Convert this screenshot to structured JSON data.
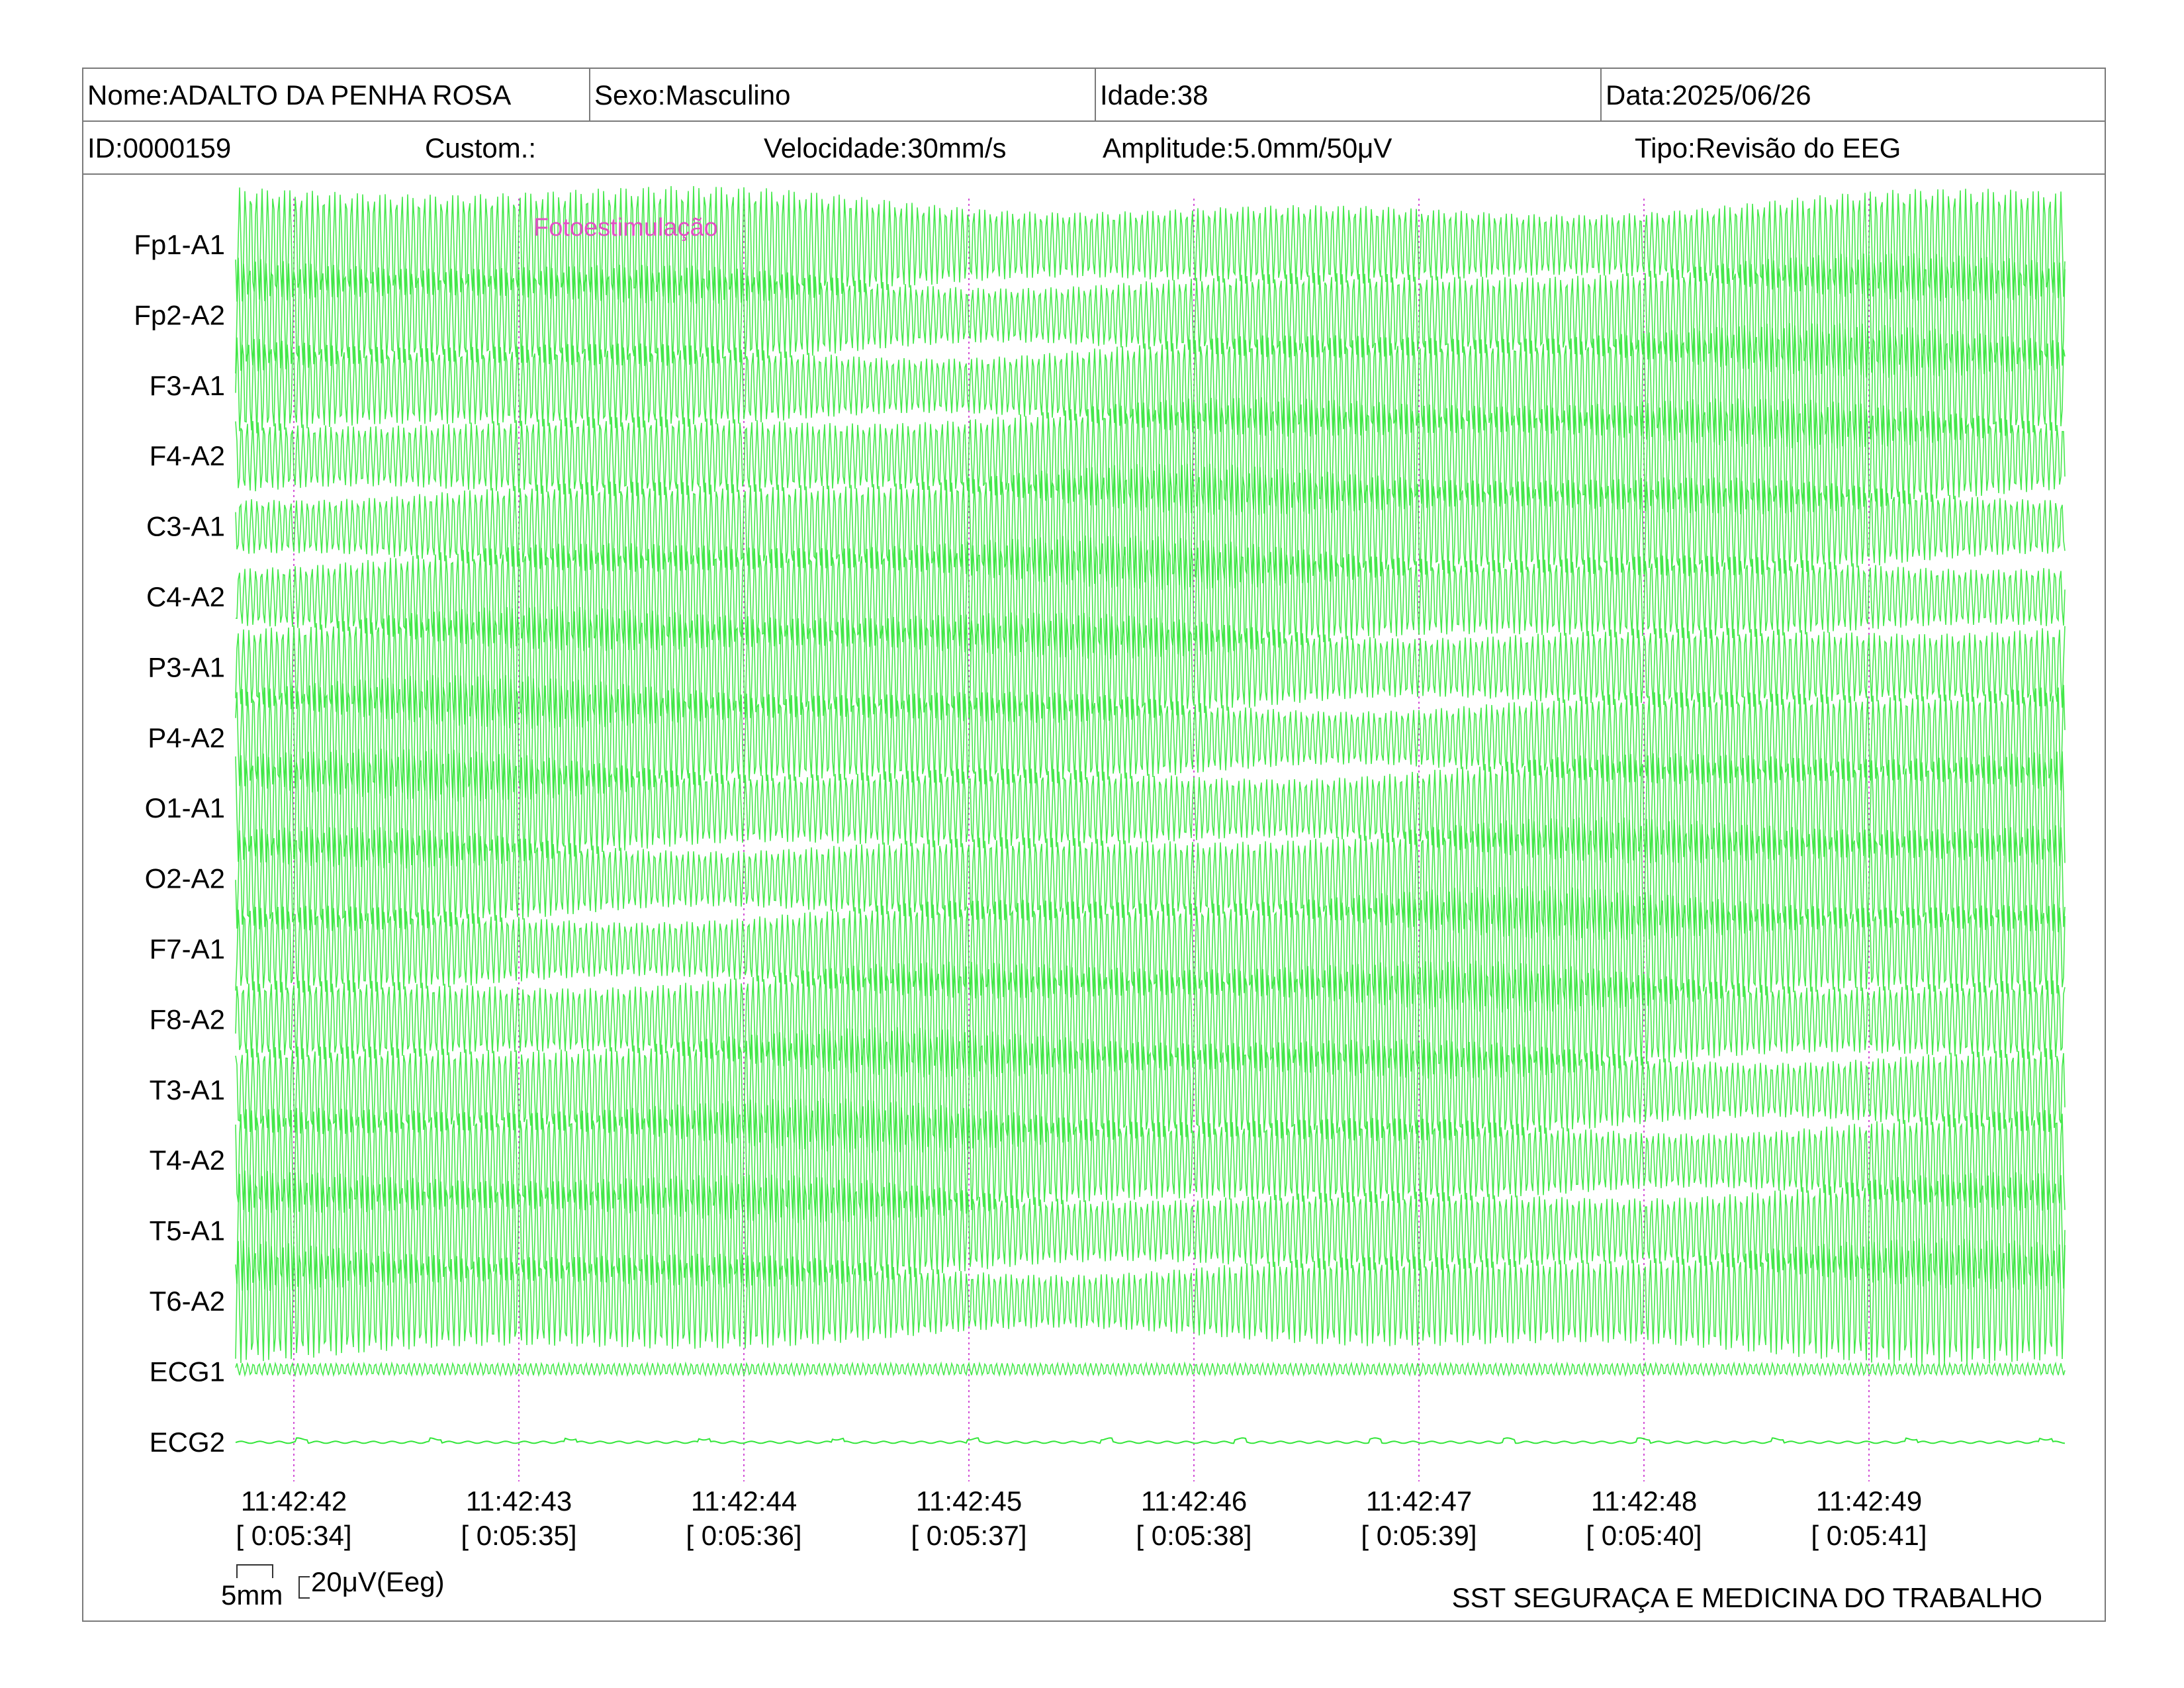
{
  "header": {
    "nome": "Nome:ADALTO DA PENHA ROSA",
    "sexo": "Sexo:Masculino",
    "idade": "Idade:38",
    "data": "Data:2025/06/26",
    "id": "ID:0000159",
    "custom": "Custom.:",
    "velocidade": "Velocidade:30mm/s",
    "amplitude": "Amplitude:5.0mm/50μV",
    "tipo": "Tipo:Revisão do EEG"
  },
  "channels": [
    "Fp1-A1",
    "Fp2-A2",
    "F3-A1",
    "F4-A2",
    "C3-A1",
    "C4-A2",
    "P3-A1",
    "P4-A2",
    "O1-A1",
    "O2-A2",
    "F7-A1",
    "F8-A2",
    "T3-A1",
    "T4-A2",
    "T5-A1",
    "T6-A2",
    "ECG1",
    "ECG2"
  ],
  "event": {
    "label": "Fotoestimulação",
    "color": "#e24fc4"
  },
  "time_marks": [
    {
      "clock": "11:42:42",
      "elapsed": "[ 0:05:34]"
    },
    {
      "clock": "11:42:43",
      "elapsed": "[ 0:05:35]"
    },
    {
      "clock": "11:42:44",
      "elapsed": "[ 0:05:36]"
    },
    {
      "clock": "11:42:45",
      "elapsed": "[ 0:05:37]"
    },
    {
      "clock": "11:42:46",
      "elapsed": "[ 0:05:38]"
    },
    {
      "clock": "11:42:47",
      "elapsed": "[ 0:05:39]"
    },
    {
      "clock": "11:42:48",
      "elapsed": "[ 0:05:40]"
    },
    {
      "clock": "11:42:49",
      "elapsed": "[ 0:05:41]"
    }
  ],
  "calibration": {
    "time_scale": "5mm",
    "amp_scale": "20μV(Eeg)"
  },
  "footer": {
    "company": "SST SEGURAÇA E MEDICINA DO TRABALHO"
  },
  "colors": {
    "trace": "#33e63a",
    "marker": "#d24fd6",
    "border": "#7a7a7a"
  }
}
